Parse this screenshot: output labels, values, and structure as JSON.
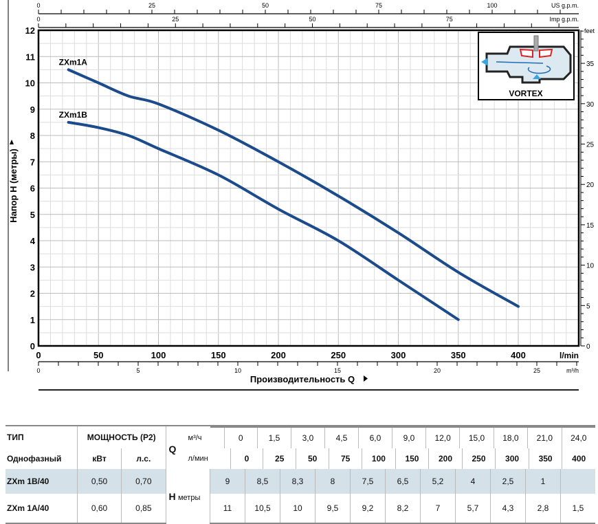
{
  "chart_data": {
    "type": "line",
    "xlabel": "Производительность Q",
    "ylabel": "Напор H (метры)",
    "x_unit": "l/min",
    "xlim": [
      0,
      450
    ],
    "ylim": [
      0,
      12
    ],
    "x_ticks": [
      0,
      50,
      100,
      150,
      200,
      250,
      300,
      350,
      400
    ],
    "y_ticks": [
      0,
      1,
      2,
      3,
      4,
      5,
      6,
      7,
      8,
      9,
      10,
      11,
      12
    ],
    "grid": true,
    "secondary_axes": {
      "us_gpm": {
        "label": "US g.p.m.",
        "ticks": [
          0,
          25,
          50,
          75,
          100
        ]
      },
      "imp_gpm": {
        "label": "Imp g.p.m.",
        "ticks": [
          0,
          25,
          50,
          75
        ]
      },
      "m3h": {
        "label": "m³/h",
        "ticks": [
          0,
          5,
          10,
          15,
          20,
          25
        ]
      },
      "feet": {
        "label": "feet",
        "ticks": [
          0,
          5,
          10,
          15,
          20,
          25,
          30,
          35
        ]
      }
    },
    "series": [
      {
        "name": "ZXm1A",
        "x": [
          25,
          50,
          75,
          100,
          150,
          200,
          250,
          300,
          350,
          400
        ],
        "y": [
          10.5,
          10,
          9.5,
          9.2,
          8.2,
          7,
          5.7,
          4.3,
          2.8,
          1.5
        ]
      },
      {
        "name": "ZXm1B",
        "x": [
          25,
          50,
          75,
          100,
          150,
          200,
          250,
          300,
          350
        ],
        "y": [
          8.5,
          8.3,
          8,
          7.5,
          6.5,
          5.2,
          4,
          2.5,
          1
        ]
      }
    ],
    "line_color": "#1c4b8c"
  },
  "inset": {
    "label": "VORTEX"
  },
  "table": {
    "type_header": "ТИП",
    "phase_header": "Однофазный",
    "power_header": "МОЩНОСТЬ (P2)",
    "kw_header": "кВт",
    "hp_header": "л.с.",
    "q_label": "Q",
    "q_unit_m3": "м³/ч",
    "q_unit_l": "л/мин",
    "h_label": "H",
    "h_unit": "метры",
    "q_m3h": [
      "0",
      "1,5",
      "3,0",
      "4,5",
      "6,0",
      "9,0",
      "12,0",
      "15,0",
      "18,0",
      "21,0",
      "24,0"
    ],
    "q_lmin": [
      "0",
      "25",
      "50",
      "75",
      "100",
      "150",
      "200",
      "250",
      "300",
      "350",
      "400"
    ],
    "rows": [
      {
        "model": "ZXm 1B/40",
        "kw": "0,50",
        "hp": "0,70",
        "h": [
          "9",
          "8,5",
          "8,3",
          "8",
          "7,5",
          "6,5",
          "5,2",
          "4",
          "2,5",
          "1",
          ""
        ]
      },
      {
        "model": "ZXm 1A/40",
        "kw": "0,60",
        "hp": "0,85",
        "h": [
          "11",
          "10,5",
          "10",
          "9,5",
          "9,2",
          "8,2",
          "7",
          "5,7",
          "4,3",
          "2,8",
          "1,5"
        ]
      }
    ],
    "highlight_color": "#d5e1e8"
  }
}
